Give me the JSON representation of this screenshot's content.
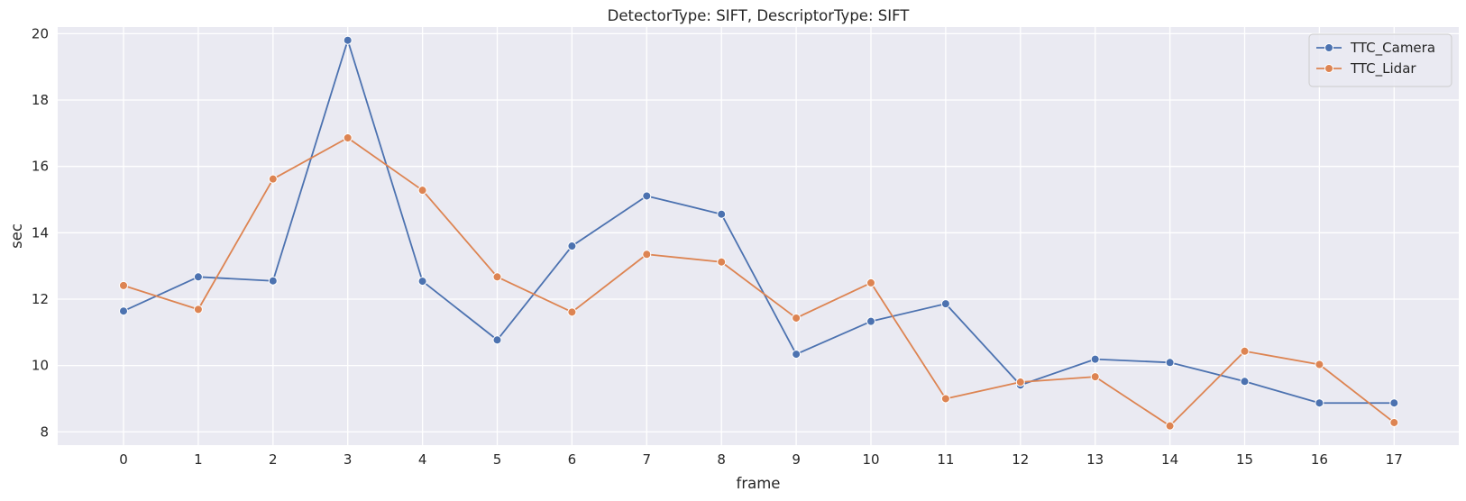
{
  "chart_data": {
    "type": "line",
    "title": "DetectorType: SIFT, DescriptorType: SIFT",
    "xlabel": "frame",
    "ylabel": "sec",
    "x": [
      0,
      1,
      2,
      3,
      4,
      5,
      6,
      7,
      8,
      9,
      10,
      11,
      12,
      13,
      14,
      15,
      16,
      17
    ],
    "y_ticks": [
      8,
      10,
      12,
      14,
      16,
      18,
      20
    ],
    "ylim": [
      7.6,
      20.2
    ],
    "grid": true,
    "legend_position": "top-right",
    "markers": true,
    "series": [
      {
        "name": "TTC_Camera",
        "color": "#4c72b0",
        "values": [
          11.64,
          12.67,
          12.55,
          19.8,
          12.54,
          10.77,
          13.6,
          15.11,
          14.56,
          10.34,
          11.33,
          11.86,
          9.41,
          10.19,
          10.09,
          9.52,
          8.87,
          8.87
        ]
      },
      {
        "name": "TTC_Lidar",
        "color": "#dd8452",
        "values": [
          12.41,
          11.69,
          15.62,
          16.86,
          15.28,
          12.67,
          11.61,
          13.35,
          13.12,
          11.43,
          12.49,
          9.0,
          9.5,
          9.66,
          8.18,
          10.43,
          10.03,
          8.28
        ]
      }
    ]
  }
}
